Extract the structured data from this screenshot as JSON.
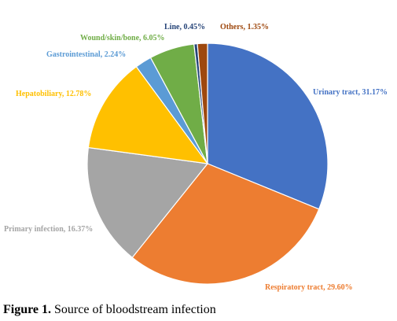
{
  "chart_data": {
    "type": "pie",
    "start_angle_deg": 0,
    "direction": "clockwise",
    "slices": [
      {
        "label": "Urinary tract, 31.17%",
        "name": "Urinary tract",
        "value": 31.17,
        "color": "#4472C4"
      },
      {
        "label": "Respiratory tract, 29.60%",
        "name": "Respiratory tract",
        "value": 29.6,
        "color": "#ED7D31"
      },
      {
        "label": "Primary infection, 16.37%",
        "name": "Primary infection",
        "value": 16.37,
        "color": "#A5A5A5"
      },
      {
        "label": "Hepatobiliary, 12.78%",
        "name": "Hepatobiliary",
        "value": 12.78,
        "color": "#FFC000"
      },
      {
        "label": "Gastrointestinal, 2.24%",
        "name": "Gastrointestinal",
        "value": 2.24,
        "color": "#5B9BD5"
      },
      {
        "label": "Wound/skin/bone, 6.05%",
        "name": "Wound/skin/bone",
        "value": 6.05,
        "color": "#70AD47"
      },
      {
        "label": "Line, 0.45%",
        "name": "Line",
        "value": 0.45,
        "color": "#264478"
      },
      {
        "label": "Others, 1.35%",
        "name": "Others",
        "value": 1.35,
        "color": "#9E480E"
      }
    ],
    "slice_border_color": "#ffffff"
  },
  "caption": {
    "prefix": "Figure 1.",
    "text": "Source of bloodstream infection"
  }
}
